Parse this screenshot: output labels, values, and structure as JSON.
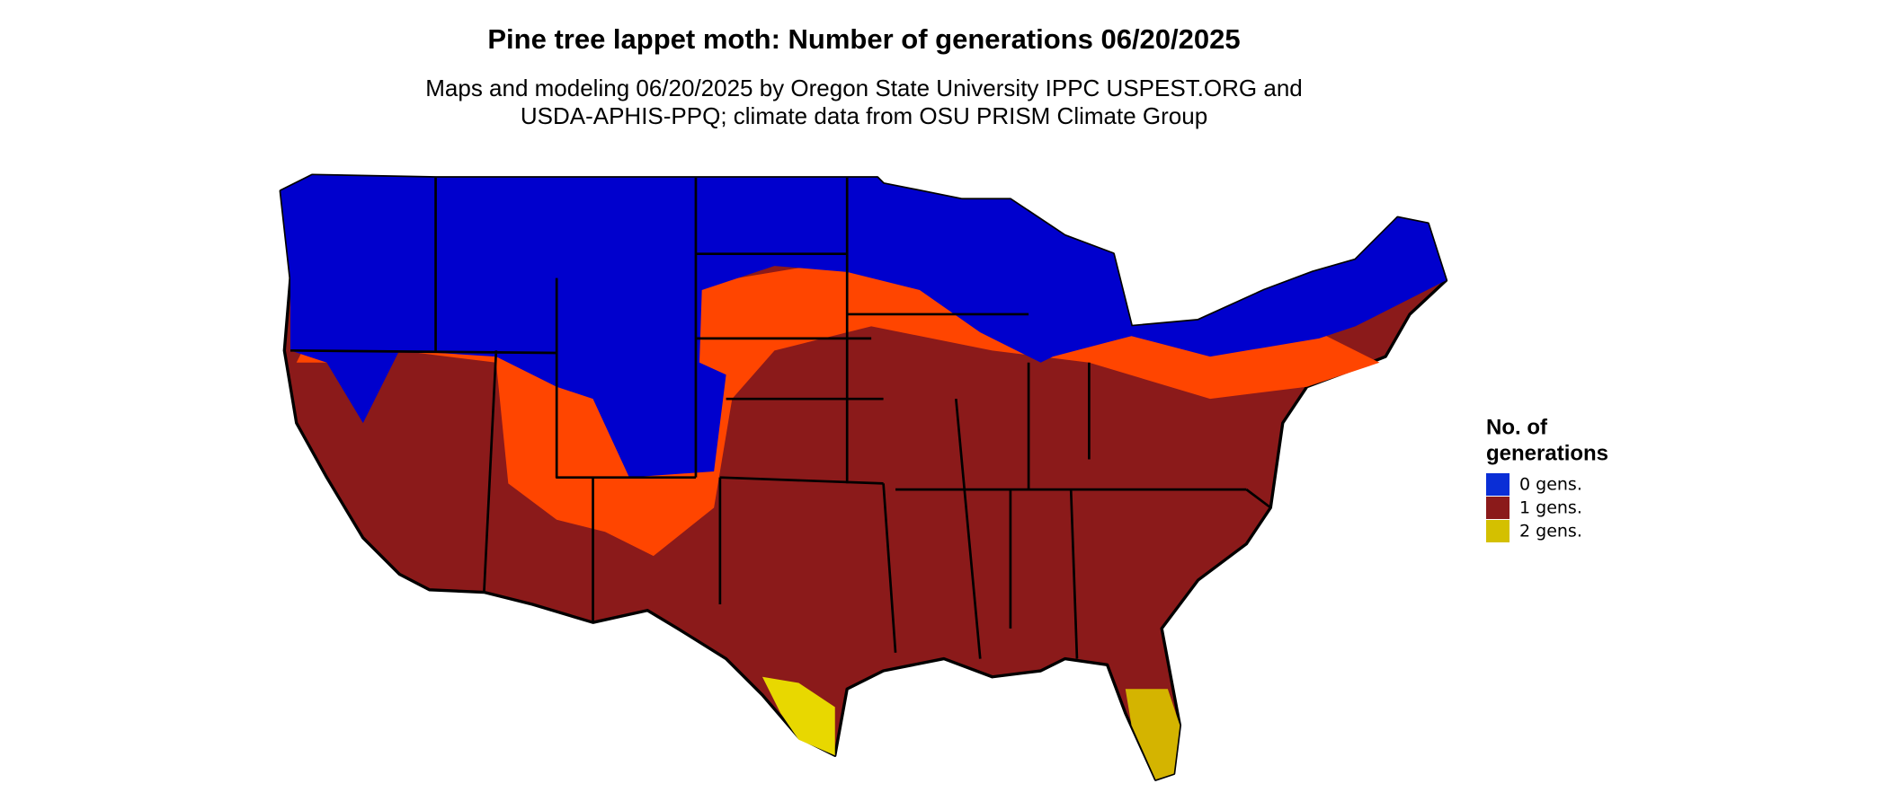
{
  "title": "Pine tree lappet moth: Number of generations 06/20/2025",
  "subtitle": [
    "Maps and modeling 06/20/2025 by Oregon State University IPPC USPEST.ORG and",
    "USDA-APHIS-PPQ; climate data from OSU PRISM Climate Group"
  ],
  "legend": {
    "title": [
      "No. of",
      "generations"
    ],
    "items": [
      {
        "label": "0 gens.",
        "color": "#0a2ed6"
      },
      {
        "label": "1 gens.",
        "color": "#8b1a1a"
      },
      {
        "label": "2 gens.",
        "color": "#d4c000"
      }
    ]
  }
}
